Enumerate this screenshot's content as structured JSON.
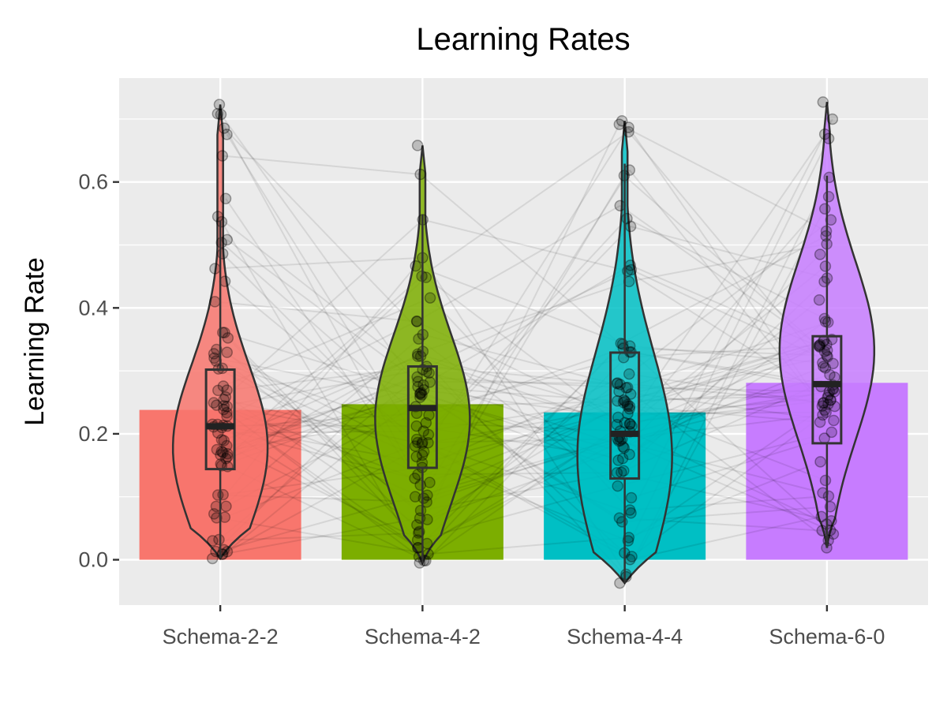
{
  "chart_data": {
    "type": "bar",
    "title": "Learning Rates",
    "xlabel": "",
    "ylabel": "Learning Rate",
    "categories": [
      "Schema-2-2",
      "Schema-4-2",
      "Schema-4-4",
      "Schema-6-0"
    ],
    "values": [
      0.238,
      0.247,
      0.234,
      0.281
    ],
    "colors": [
      "#F8766D",
      "#7CAE00",
      "#00BFC4",
      "#C77CFF"
    ],
    "yticks": [
      0.0,
      0.2,
      0.4,
      0.6
    ],
    "ytick_labels": [
      "0.0",
      "0.2",
      "0.4",
      "0.6"
    ],
    "ylim": [
      -0.072,
      0.765
    ],
    "grid": true,
    "legend": "none",
    "overlays": [
      "violin",
      "boxplot",
      "jittered-points",
      "paired-lines"
    ],
    "boxplots": [
      {
        "q1": 0.144,
        "median": 0.212,
        "q3": 0.302
      },
      {
        "q1": 0.146,
        "median": 0.241,
        "q3": 0.307
      },
      {
        "q1": 0.129,
        "median": 0.2,
        "q3": 0.329
      },
      {
        "q1": 0.185,
        "median": 0.279,
        "q3": 0.355
      }
    ],
    "violins": [
      {
        "min": 0.002,
        "max": 0.723
      },
      {
        "min": -0.005,
        "max": 0.658
      },
      {
        "min": -0.037,
        "max": 0.697
      },
      {
        "min": 0.019,
        "max": 0.727
      }
    ]
  }
}
